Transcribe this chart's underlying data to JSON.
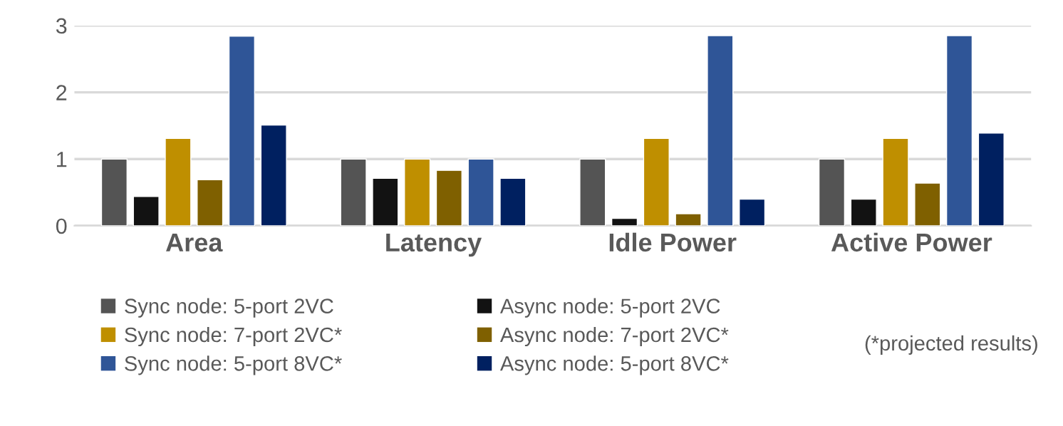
{
  "chart_data": {
    "type": "bar",
    "categories": [
      "Area",
      "Latency",
      "Idle Power",
      "Active Power"
    ],
    "series": [
      {
        "name": "Sync node: 5-port 2VC",
        "color": "#545454",
        "values": [
          1,
          1,
          1,
          1
        ]
      },
      {
        "name": "Async node: 5-port 2VC",
        "color": "#121212",
        "values": [
          0.44,
          0.71,
          0.11,
          0.4
        ]
      },
      {
        "name": "Sync node: 7-port 2VC*",
        "color": "#bf8f00",
        "values": [
          1.31,
          1,
          1.31,
          1.31
        ]
      },
      {
        "name": "Async node: 7-port 2VC*",
        "color": "#7f6000",
        "values": [
          0.69,
          0.83,
          0.18,
          0.64
        ]
      },
      {
        "name": "Sync node: 5-port 8VC*",
        "color": "#2f5597",
        "values": [
          2.84,
          1,
          2.85,
          2.85
        ]
      },
      {
        "name": "Async node: 5-port 8VC*",
        "color": "#002060",
        "values": [
          1.51,
          0.71,
          0.4,
          1.39
        ]
      }
    ],
    "ylim": [
      0,
      3
    ],
    "yticks": [
      0,
      1,
      2,
      3
    ],
    "grid": "y",
    "legend": "bottom",
    "annotations": [
      "(*projected results)"
    ]
  }
}
